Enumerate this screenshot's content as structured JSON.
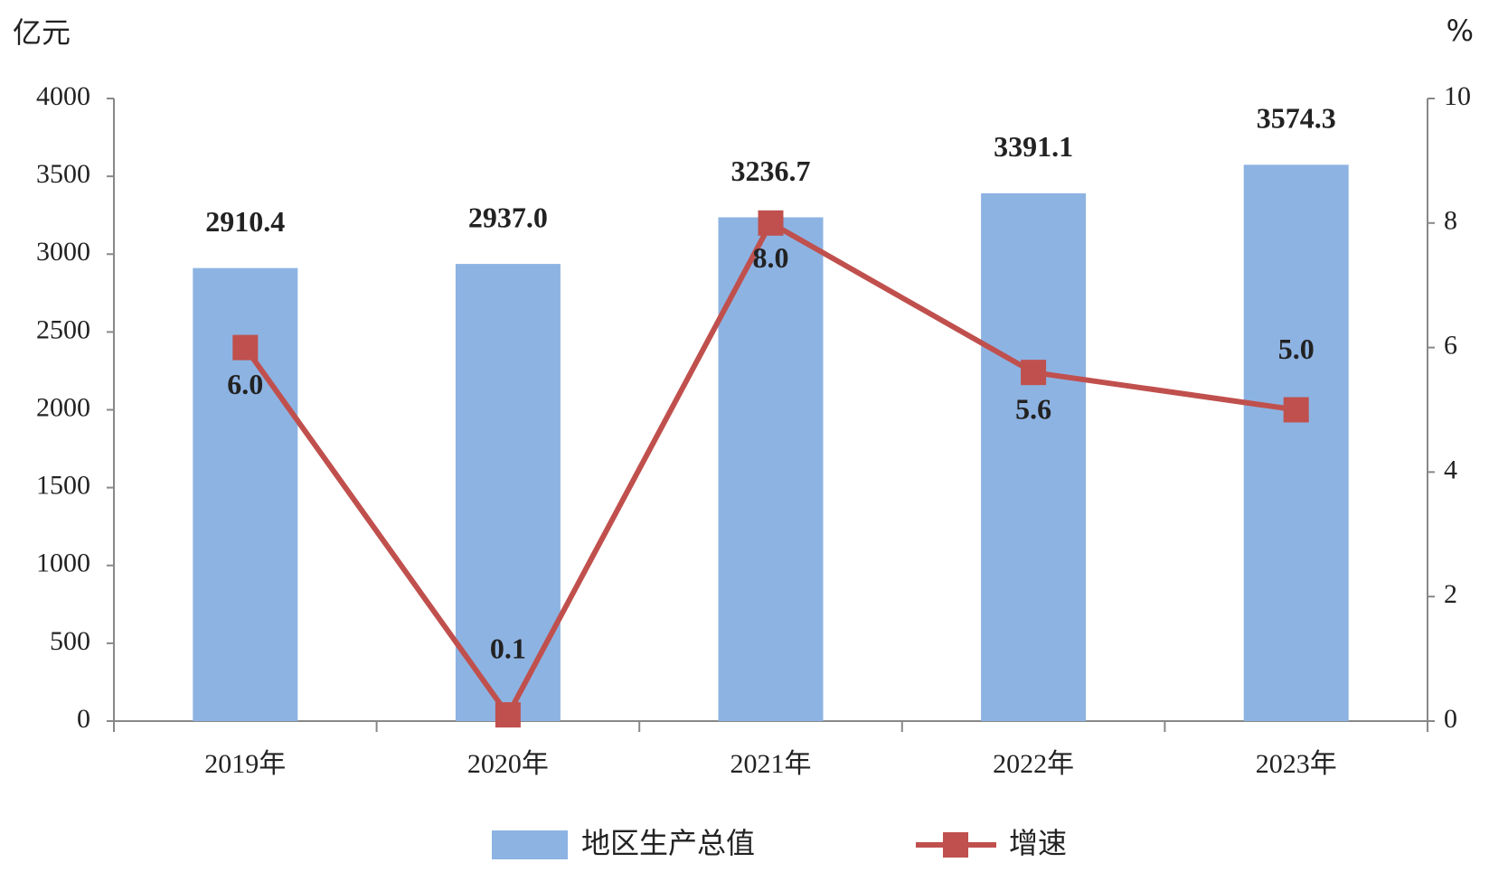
{
  "chart_data": {
    "type": "bar-line",
    "y_unit": "亿元",
    "y2_unit": "%",
    "categories": [
      "2019年",
      "2020年",
      "2021年",
      "2022年",
      "2023年"
    ],
    "series": [
      {
        "name": "地区生产总值",
        "type": "bar",
        "color": "#8db3e2",
        "values": [
          2910.4,
          2937.0,
          3236.7,
          3391.1,
          3574.3
        ],
        "value_labels": [
          "2910.4",
          "2937.0",
          "3236.7",
          "3391.1",
          "3574.3"
        ]
      },
      {
        "name": "增速",
        "type": "line",
        "axis": "y2",
        "color": "#c0504d",
        "values": [
          6.0,
          0.1,
          8.0,
          5.6,
          5.0
        ],
        "value_labels": [
          "6.0",
          "0.1",
          "8.0",
          "5.6",
          "5.0"
        ]
      }
    ],
    "ylim": [
      0,
      4000
    ],
    "yticks": [
      0,
      500,
      1000,
      1500,
      2000,
      2500,
      3000,
      3500,
      4000
    ],
    "y2lim": [
      0,
      10
    ],
    "y2ticks": [
      0,
      2,
      4,
      6,
      8,
      10
    ],
    "legend": "bottom"
  }
}
